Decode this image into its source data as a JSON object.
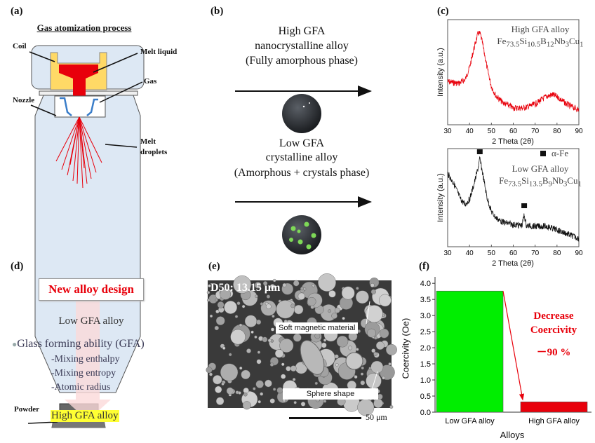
{
  "panels": {
    "a": {
      "label": "(a)",
      "title": "Gas atomization process",
      "callouts": {
        "coil": "Coil",
        "melt_liquid": "Melt liquid",
        "gas": "Gas",
        "nozzle": "Nozzle",
        "melt_droplets_1": "Melt",
        "melt_droplets_2": "droplets",
        "powder": "Powder"
      }
    },
    "b": {
      "label": "(b)",
      "high": {
        "line1": "High GFA",
        "line2": "nanocrystalline alloy",
        "line3": "(Fully amorphous phase)"
      },
      "low": {
        "line1": "Low GFA",
        "line2": "crystalline alloy",
        "line3": "(Amorphous + crystals phase)"
      }
    },
    "c": {
      "label": "(c)"
    },
    "d": {
      "label": "(d)",
      "box_title": "New alloy design",
      "start": "Low GFA alloy",
      "bullet": "Glass forming ability (GFA)",
      "factors": [
        "Mixing enthalpy",
        "Mixing entropy",
        "Atomic radius"
      ],
      "result": "High GFA alloy"
    },
    "e": {
      "label": "(e)",
      "d50": "D50: 13.15 μm",
      "annot1": "Soft magnetic material",
      "annot2": "Sphere shape",
      "scale": "50 μm"
    },
    "f": {
      "label": "(f)",
      "annot1": "Decrease",
      "annot2": "Coercivity",
      "annot3": "－90 %"
    }
  },
  "colors": {
    "red": "#e8000b",
    "green": "#00ee00",
    "coil": "#ffd966",
    "chamber": "#dde8f4"
  },
  "chart_data": [
    {
      "type": "line",
      "title": "High GFA alloy",
      "subtitle_html": "Fe<sub>73.5</sub>Si<sub>10.5</sub>B<sub>12</sub>Nb<sub>3</sub>Cu<sub>1</sub>",
      "xlabel": "2 Theta (2θ)",
      "ylabel": "Intensity (a.u.)",
      "xlim": [
        30,
        90
      ],
      "xticks": [
        "30",
        "40",
        "50",
        "60",
        "70",
        "80",
        "90"
      ],
      "color": "#e8000b",
      "x": [
        30,
        35,
        38,
        40,
        42,
        44,
        45,
        46,
        48,
        50,
        52,
        55,
        60,
        65,
        70,
        75,
        78,
        80,
        85,
        90
      ],
      "y": [
        0.4,
        0.38,
        0.42,
        0.55,
        0.75,
        0.92,
        0.9,
        0.8,
        0.55,
        0.35,
        0.25,
        0.18,
        0.12,
        0.12,
        0.16,
        0.24,
        0.26,
        0.24,
        0.15,
        0.1
      ]
    },
    {
      "type": "line",
      "title": "Low GFA alloy",
      "subtitle_html": "Fe<sub>73.5</sub>Si<sub>13.5</sub>B<sub>9</sub>Nb<sub>3</sub>Cu<sub>1</sub>",
      "legend": "α-Fe",
      "xlabel": "2 Theta (2θ)",
      "ylabel": "Intensity (a.u.)",
      "xlim": [
        30,
        90
      ],
      "xticks": [
        "30",
        "40",
        "50",
        "60",
        "70",
        "80",
        "90"
      ],
      "color": "#111111",
      "markers_x": [
        44.7,
        65.0
      ],
      "x": [
        30,
        33,
        36,
        38,
        40,
        42,
        44,
        44.7,
        46,
        48,
        50,
        52,
        55,
        60,
        64,
        65,
        66,
        70,
        75,
        80,
        85,
        90
      ],
      "y": [
        0.78,
        0.65,
        0.48,
        0.42,
        0.48,
        0.65,
        0.85,
        0.95,
        0.78,
        0.5,
        0.34,
        0.27,
        0.22,
        0.19,
        0.18,
        0.3,
        0.18,
        0.17,
        0.17,
        0.13,
        0.08,
        0.03
      ]
    },
    {
      "type": "bar",
      "categories": [
        "Low GFA alloy",
        "High GFA alloy"
      ],
      "values": [
        3.76,
        0.32
      ],
      "colors": [
        "#00ee00",
        "#e8000b"
      ],
      "xlabel": "Alloys",
      "ylabel": "Coercivity (Oe)",
      "ylim": [
        0,
        4.2
      ],
      "yticks": [
        "0.0",
        "0.5",
        "1.0",
        "1.5",
        "2.0",
        "2.5",
        "3.0",
        "3.5",
        "4.0"
      ]
    }
  ]
}
